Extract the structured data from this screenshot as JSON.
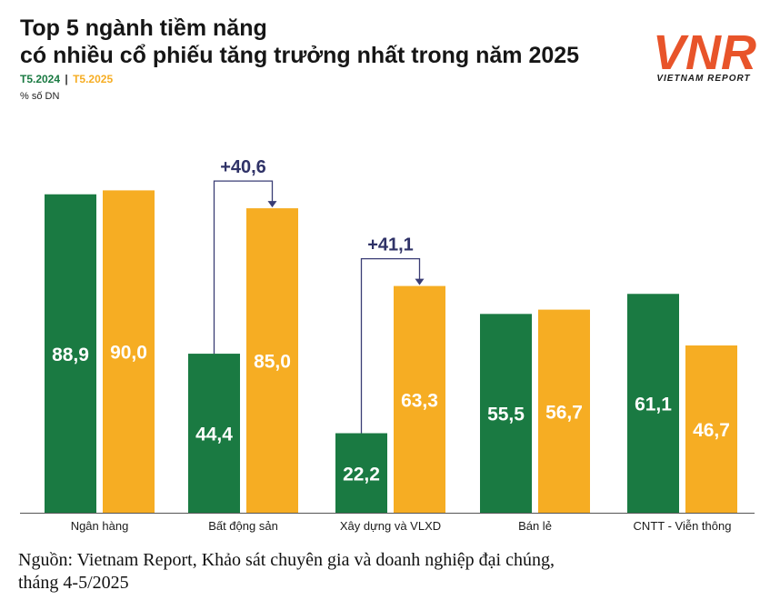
{
  "header": {
    "title_line1": "Top 5 ngành tiềm năng",
    "title_line2": "có nhiều cổ phiếu tăng trưởng nhất trong năm 2025",
    "unit": "% số DN"
  },
  "legend": {
    "separator": "|"
  },
  "logo": {
    "text": "VIETNAM REPORT",
    "letters": "VNR",
    "color": "#e8542a"
  },
  "source": {
    "line1": "Nguồn: Vietnam Report, Khảo sát chuyên gia và doanh nghiệp đại chúng,",
    "line2": "tháng 4-5/2025"
  },
  "colors": {
    "green": "#1a7a42",
    "orange": "#f6ad23",
    "arrow": "#3a3d75",
    "axis": "#555555"
  },
  "chart_data": {
    "type": "bar",
    "categories": [
      "Ngân hàng",
      "Bất động sản",
      "Xây dựng và VLXD",
      "Bán lẻ",
      "CNTT - Viễn thông"
    ],
    "series": [
      {
        "name": "T5.2024",
        "color": "#1a7a42",
        "values": [
          88.9,
          44.4,
          22.2,
          55.5,
          61.1
        ],
        "labels": [
          "88,9",
          "44,4",
          "22,2",
          "55,5",
          "61,1"
        ]
      },
      {
        "name": "T5.2025",
        "color": "#f6ad23",
        "values": [
          90.0,
          85.0,
          63.3,
          56.7,
          46.7
        ],
        "labels": [
          "90,0",
          "85,0",
          "63,3",
          "56,7",
          "46,7"
        ]
      }
    ],
    "annotations": [
      {
        "category": "Bất động sản",
        "text": "+40,6"
      },
      {
        "category": "Xây dựng và VLXD",
        "text": "+41,1"
      }
    ],
    "ylim": [
      0,
      100
    ]
  }
}
